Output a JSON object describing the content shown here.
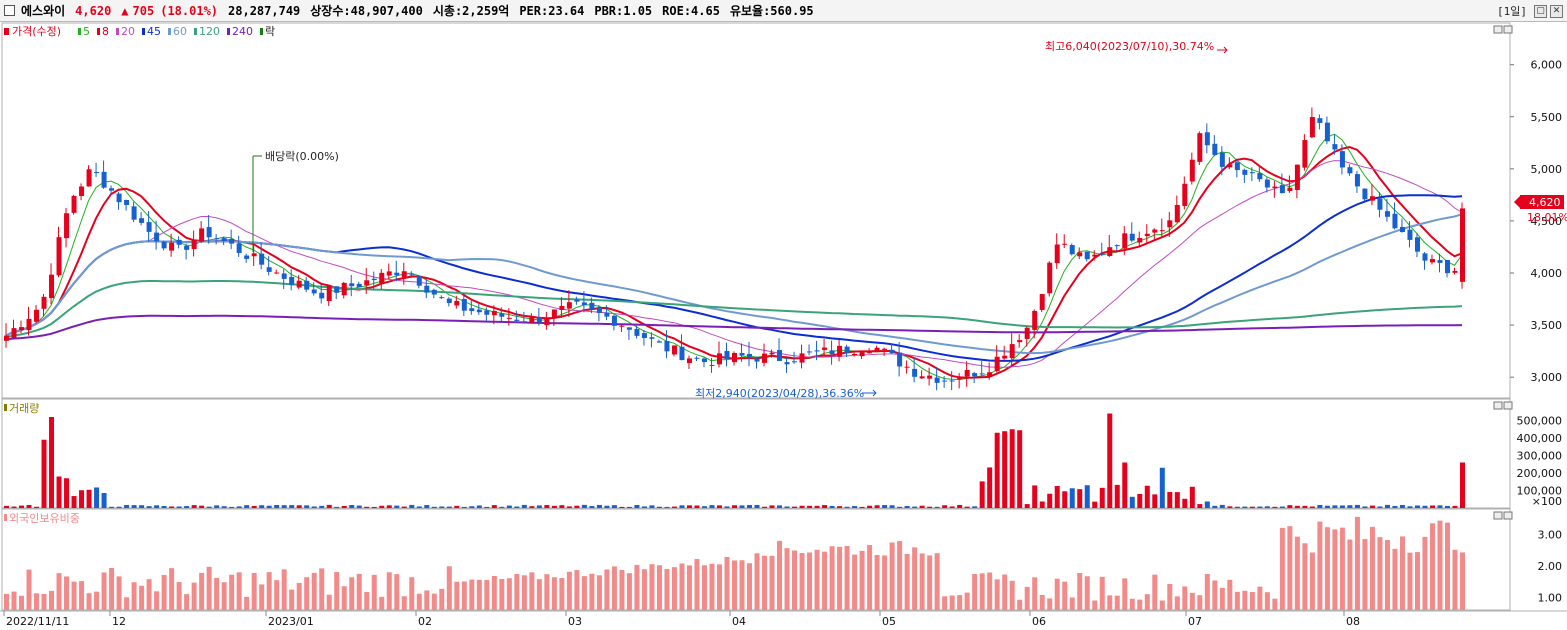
{
  "header": {
    "name": "에스와이",
    "price": "4,620",
    "change_arrow": "▲",
    "change": "705",
    "change_pct": "(18.01%)",
    "volume": "28,287,749",
    "listed": "상장수:48,907,400",
    "market_cap": "시총:2,259억",
    "per": "PER:23.64",
    "pbr": "PBR:1.05",
    "roe": "ROE:4.65",
    "reserve": "유보율:560.95",
    "period": "[1일]",
    "win_buttons": [
      "▢",
      "✕"
    ]
  },
  "colors": {
    "up": "#e5001b",
    "down": "#1660cf",
    "ma5": "#22b022",
    "ma8": "#e5001b",
    "ma20": "#c24bc2",
    "ma45": "#0a2ed0",
    "ma60": "#6f9ad0",
    "ma120": "#3ba37a",
    "ma240": "#7a1fb4",
    "foreign": "#f28a8a"
  },
  "legend": {
    "price_title": "가격(수정)",
    "ma_items": [
      {
        "label": "5",
        "color": "#22b022"
      },
      {
        "label": "8",
        "color": "#e5001b"
      },
      {
        "label": "20",
        "color": "#c24bc2"
      },
      {
        "label": "45",
        "color": "#0a2ed0"
      },
      {
        "label": "60",
        "color": "#6f9ad0"
      },
      {
        "label": "120",
        "color": "#3ba37a"
      },
      {
        "label": "240",
        "color": "#7a1fb4"
      }
    ],
    "rak": "락",
    "volume_title": "거래량",
    "foreign_title": "외국인보유비중"
  },
  "annotations": {
    "high": "최고6,040(2023/07/10),30.74%",
    "low": "최저2,940(2023/04/28),36.36%",
    "dividend": "배당락(0.00%)",
    "last_price": "4,620",
    "last_pct": "18.01%"
  },
  "chart_data": [
    {
      "type": "candlestick",
      "title": "가격(수정)",
      "y_ticks": [
        "6,000",
        "5,500",
        "5,000",
        "4,500",
        "4,000",
        "3,500",
        "3,000"
      ],
      "ylim": [
        2800,
        6400
      ],
      "x_ticks": [
        "2022/11/11",
        "12",
        "2023/01",
        "02",
        "03",
        "04",
        "05",
        "06",
        "07",
        "08"
      ],
      "series_note": "daily candles, moving averages 5/8/20/45/60/120/240",
      "key_points": [
        {
          "label": "high",
          "value": 6040,
          "date": "2023/07/10"
        },
        {
          "label": "low",
          "value": 2940,
          "date": "2023/04/28"
        },
        {
          "label": "last",
          "value": 4620
        }
      ]
    },
    {
      "type": "bar",
      "title": "거래량",
      "y_ticks": [
        "500,000",
        "400,000",
        "300,000",
        "200,000",
        "100,000",
        "×100"
      ],
      "ylim": [
        0,
        600000
      ]
    },
    {
      "type": "bar",
      "title": "외국인보유비중",
      "y_ticks": [
        "3.00",
        "2.00",
        "1.00"
      ],
      "ylim": [
        0.6,
        3.8
      ]
    }
  ]
}
